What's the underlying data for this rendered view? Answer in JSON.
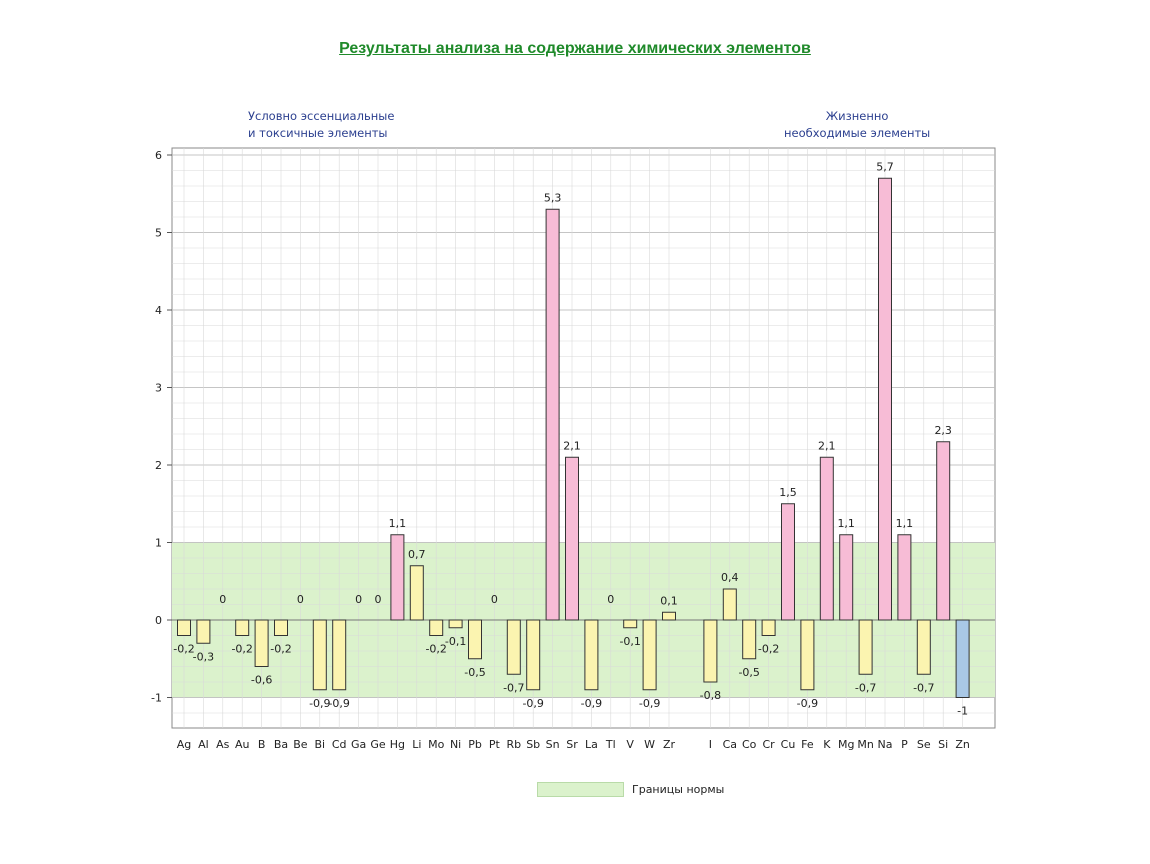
{
  "chart_data": {
    "type": "bar",
    "title": "Результаты анализа на содержание химических элементов",
    "group_labels": [
      {
        "name": "toxic",
        "text": "Условно эссенциальные\nи токсичные элементы"
      },
      {
        "name": "essential",
        "text": "Жизненно\nнеобходимые элементы"
      }
    ],
    "ylim": [
      -1.3,
      6
    ],
    "yticks": [
      -1,
      0,
      1,
      2,
      3,
      4,
      5,
      6
    ],
    "norm_band": [
      -1,
      1
    ],
    "legend": {
      "label": "Границы нормы",
      "color": "#dbf2cc",
      "position": "bottom-center"
    },
    "categories": [
      "Ag",
      "Al",
      "As",
      "Au",
      "B",
      "Ba",
      "Be",
      "Bi",
      "Cd",
      "Ga",
      "Ge",
      "Hg",
      "Li",
      "Mo",
      "Ni",
      "Pb",
      "Pt",
      "Rb",
      "Sb",
      "Sn",
      "Sr",
      "La",
      "Tl",
      "V",
      "W",
      "Zr",
      "I",
      "Ca",
      "Co",
      "Cr",
      "Cu",
      "Fe",
      "K",
      "Mg",
      "Mn",
      "Na",
      "P",
      "Se",
      "Si",
      "Zn"
    ],
    "values": [
      -0.2,
      -0.3,
      0,
      -0.2,
      -0.6,
      -0.2,
      0,
      -0.9,
      -0.9,
      0,
      0,
      1.1,
      0.7,
      -0.2,
      -0.1,
      -0.5,
      0,
      -0.7,
      -0.9,
      5.3,
      2.1,
      -0.9,
      0,
      -0.1,
      -0.9,
      0.1,
      -0.8,
      0.4,
      -0.5,
      -0.2,
      1.5,
      -0.9,
      2.1,
      1.1,
      -0.7,
      5.7,
      1.1,
      -0.7,
      2.3,
      -1
    ],
    "value_labels": [
      "-0,2",
      "-0,3",
      "0",
      "-0,2",
      "-0,6",
      "-0,2",
      "0",
      "-0,9",
      "-0,9",
      "0",
      "0",
      "1,1",
      "0,7",
      "-0,2",
      "-0,1",
      "-0,5",
      "0",
      "-0,7",
      "-0,9",
      "5,3",
      "2,1",
      "-0,9",
      "0",
      "-0,1",
      "-0,9",
      "0,1",
      "-0,8",
      "0,4",
      "-0,5",
      "-0,2",
      "1,5",
      "-0,9",
      "2,1",
      "1,1",
      "-0,7",
      "5,7",
      "1,1",
      "-0,7",
      "2,3",
      "-1"
    ],
    "groups": [
      0,
      0,
      0,
      0,
      0,
      0,
      0,
      0,
      0,
      0,
      0,
      0,
      0,
      0,
      0,
      0,
      0,
      0,
      0,
      0,
      0,
      0,
      0,
      0,
      0,
      0,
      1,
      1,
      1,
      1,
      1,
      1,
      1,
      1,
      1,
      1,
      1,
      1,
      1,
      1
    ],
    "colors": {
      "positive_fill": "#f7bcd6",
      "within_fill": "#fbf4b0",
      "deficit_fill": "#a9c8e6",
      "norm_band": "#dbf2cc",
      "title": "#1f8a2a",
      "group_label": "#2b3f8f"
    },
    "grid": true
  }
}
